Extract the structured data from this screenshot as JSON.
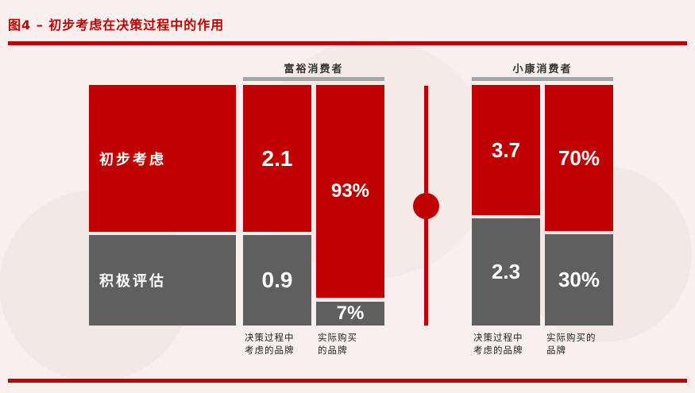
{
  "title": "图4 – 初步考虑在决策过程中的作用",
  "groups": {
    "affluent": {
      "label": "富裕消费者"
    },
    "middle": {
      "label": "小康消费者"
    }
  },
  "rows": {
    "initial": "初步考虑",
    "active": "积极评估"
  },
  "captions": {
    "brands_considered": [
      "决策过程中",
      "考虑的品牌"
    ],
    "brands_purchased": [
      "实际购买",
      "的品牌"
    ],
    "brands_purchased_middle": [
      "实际购买的",
      "品牌"
    ]
  },
  "colors": {
    "red": "#c00000",
    "gray": "#5f5f5f",
    "rule": "#a6a6a6"
  },
  "chart_data": [
    {
      "type": "bar",
      "title": "富裕消费者",
      "series": [
        {
          "name": "初步考虑",
          "values": [
            "2.1",
            "93%"
          ]
        },
        {
          "name": "积极评估",
          "values": [
            "0.9",
            "7%"
          ]
        }
      ],
      "categories": [
        "决策过程中考虑的品牌",
        "实际购买的品牌"
      ],
      "stacked": true
    },
    {
      "type": "bar",
      "title": "小康消费者",
      "series": [
        {
          "name": "初步考虑",
          "values": [
            "3.7",
            "70%"
          ]
        },
        {
          "name": "积极评估",
          "values": [
            "2.3",
            "30%"
          ]
        }
      ],
      "categories": [
        "决策过程中考虑的品牌",
        "实际购买的品牌"
      ],
      "stacked": true
    }
  ]
}
